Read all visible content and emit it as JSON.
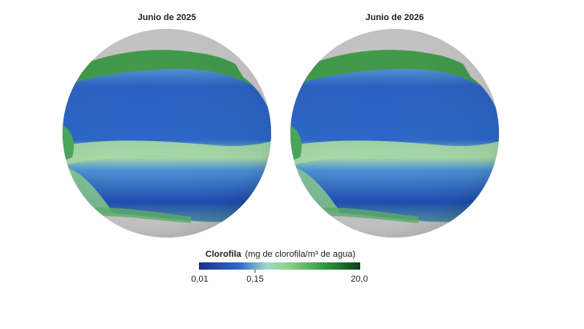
{
  "panels": [
    {
      "title": "Junio de 2025"
    },
    {
      "title": "Junio de 2026"
    }
  ],
  "colorbar": {
    "title": "Clorofila",
    "subtitle": "(mg de clorofila/m³ de agua)",
    "ticks": [
      "0,01",
      "0,15",
      "20,0"
    ]
  }
}
